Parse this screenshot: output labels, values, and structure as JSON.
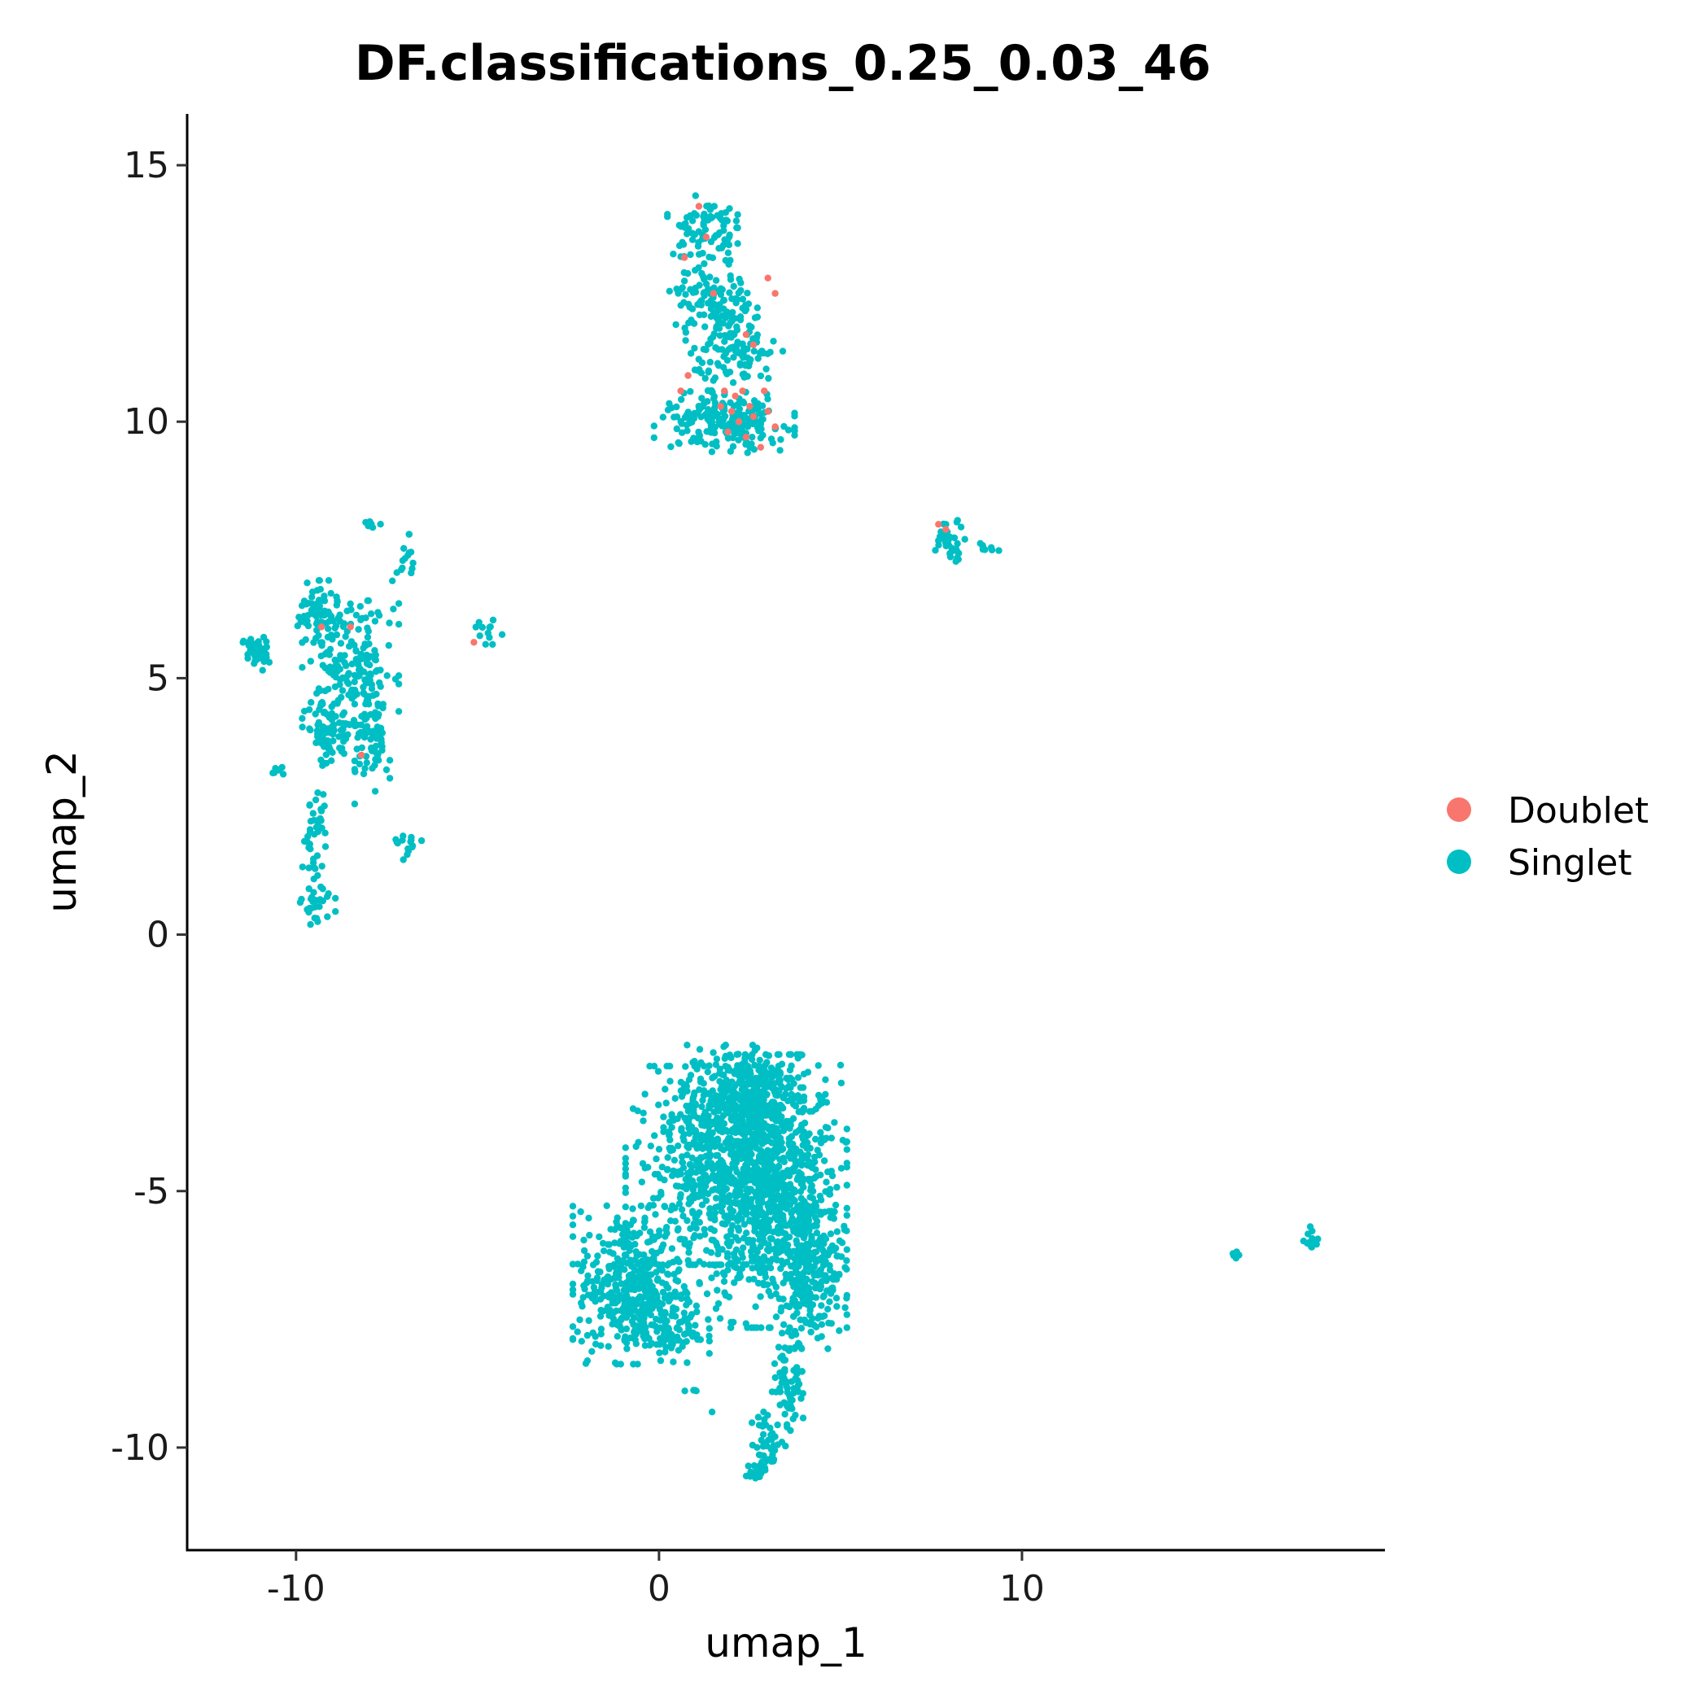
{
  "chart_data": {
    "type": "scatter",
    "title": "DF.classifications_0.25_0.03_46",
    "xlabel": "umap_1",
    "ylabel": "umap_2",
    "xlim": [
      -13,
      20
    ],
    "ylim": [
      -12,
      16
    ],
    "x_ticks": [
      -10,
      0,
      10
    ],
    "y_ticks": [
      -10,
      -5,
      0,
      5,
      10,
      15
    ],
    "x_tick_labels": [
      "-10",
      "0",
      "10"
    ],
    "y_tick_labels": [
      "-10",
      "-5",
      "0",
      "5",
      "10",
      "15"
    ],
    "grid": false,
    "legend_position": "right",
    "series": [
      {
        "name": "Doublet",
        "color": "#F8766D",
        "points": [
          [
            1.1,
            14.2
          ],
          [
            1.3,
            13.6
          ],
          [
            0.7,
            13.2
          ],
          [
            1.5,
            12.5
          ],
          [
            3.0,
            12.8
          ],
          [
            3.2,
            12.5
          ],
          [
            2.4,
            11.7
          ],
          [
            2.6,
            11.5
          ],
          [
            1.8,
            10.6
          ],
          [
            2.1,
            10.5
          ],
          [
            2.3,
            10.6
          ],
          [
            2.5,
            10.3
          ],
          [
            2.0,
            10.2
          ],
          [
            1.7,
            10.3
          ],
          [
            2.2,
            10.0
          ],
          [
            2.6,
            10.1
          ],
          [
            3.0,
            10.2
          ],
          [
            3.2,
            9.9
          ],
          [
            2.8,
            9.5
          ],
          [
            1.9,
            9.8
          ],
          [
            2.4,
            9.7
          ],
          [
            0.6,
            10.6
          ],
          [
            0.8,
            10.9
          ],
          [
            -9.3,
            6.0
          ],
          [
            -8.5,
            6.0
          ],
          [
            -8.2,
            3.5
          ],
          [
            -5.1,
            5.7
          ],
          [
            7.7,
            8.0
          ],
          [
            7.9,
            7.9
          ],
          [
            2.9,
            10.6
          ]
        ]
      },
      {
        "name": "Singlet",
        "color": "#00BFC4",
        "points": []
      }
    ],
    "clusters": [
      {
        "series": "Singlet",
        "cx": 3.0,
        "cy": -5.0,
        "rx": 1.8,
        "ry": 2.2,
        "n": 900
      },
      {
        "series": "Singlet",
        "cx": 1.5,
        "cy": -4.5,
        "rx": 2.0,
        "ry": 1.6,
        "n": 500
      },
      {
        "series": "Singlet",
        "cx": -0.8,
        "cy": -6.8,
        "rx": 1.3,
        "ry": 1.3,
        "n": 420
      },
      {
        "series": "Singlet",
        "cx": 4.2,
        "cy": -6.5,
        "rx": 0.8,
        "ry": 1.3,
        "n": 220
      },
      {
        "series": "Singlet",
        "cx": 2.3,
        "cy": -3.0,
        "rx": 1.4,
        "ry": 0.7,
        "n": 260
      },
      {
        "series": "Singlet",
        "cx": 0.3,
        "cy": -7.7,
        "rx": 0.9,
        "ry": 0.5,
        "n": 90
      },
      {
        "series": "Singlet",
        "cx": 3.6,
        "cy": -8.7,
        "rx": 0.4,
        "ry": 0.8,
        "n": 70
      },
      {
        "series": "Singlet",
        "cx": 3.0,
        "cy": -9.9,
        "rx": 0.4,
        "ry": 0.5,
        "n": 45
      },
      {
        "series": "Singlet",
        "cx": 2.7,
        "cy": -10.5,
        "rx": 0.3,
        "ry": 0.2,
        "n": 20
      },
      {
        "series": "Singlet",
        "cx": 1.2,
        "cy": 13.8,
        "rx": 0.8,
        "ry": 0.5,
        "n": 80
      },
      {
        "series": "Singlet",
        "cx": 1.5,
        "cy": 12.3,
        "rx": 1.0,
        "ry": 0.8,
        "n": 130
      },
      {
        "series": "Singlet",
        "cx": 2.2,
        "cy": 11.3,
        "rx": 1.0,
        "ry": 0.6,
        "n": 100
      },
      {
        "series": "Singlet",
        "cx": 1.8,
        "cy": 10.0,
        "rx": 1.6,
        "ry": 0.5,
        "n": 210
      },
      {
        "series": "Singlet",
        "cx": -8.5,
        "cy": 5.3,
        "rx": 1.1,
        "ry": 1.0,
        "n": 160
      },
      {
        "series": "Singlet",
        "cx": -9.1,
        "cy": 3.9,
        "rx": 0.6,
        "ry": 0.6,
        "n": 80
      },
      {
        "series": "Singlet",
        "cx": -7.9,
        "cy": 4.0,
        "rx": 0.4,
        "ry": 1.2,
        "n": 90
      },
      {
        "series": "Singlet",
        "cx": -9.4,
        "cy": 6.3,
        "rx": 0.5,
        "ry": 0.5,
        "n": 70
      },
      {
        "series": "Singlet",
        "cx": -11.1,
        "cy": 5.5,
        "rx": 0.3,
        "ry": 0.3,
        "n": 50
      },
      {
        "series": "Singlet",
        "cx": -9.5,
        "cy": 2.0,
        "rx": 0.3,
        "ry": 0.7,
        "n": 40
      },
      {
        "series": "Singlet",
        "cx": -9.4,
        "cy": 0.6,
        "rx": 0.4,
        "ry": 0.4,
        "n": 30
      },
      {
        "series": "Singlet",
        "cx": -6.9,
        "cy": 1.7,
        "rx": 0.3,
        "ry": 0.2,
        "n": 15
      },
      {
        "series": "Singlet",
        "cx": -7.0,
        "cy": 7.2,
        "rx": 0.3,
        "ry": 0.5,
        "n": 15
      },
      {
        "series": "Singlet",
        "cx": -7.9,
        "cy": 8.0,
        "rx": 0.2,
        "ry": 0.1,
        "n": 6
      },
      {
        "series": "Singlet",
        "cx": -4.7,
        "cy": 5.9,
        "rx": 0.4,
        "ry": 0.2,
        "n": 12
      },
      {
        "series": "Singlet",
        "cx": -10.5,
        "cy": 3.2,
        "rx": 0.2,
        "ry": 0.1,
        "n": 6
      },
      {
        "series": "Singlet",
        "cx": 8.0,
        "cy": 7.7,
        "rx": 0.4,
        "ry": 0.35,
        "n": 40
      },
      {
        "series": "Singlet",
        "cx": 9.0,
        "cy": 7.55,
        "rx": 0.3,
        "ry": 0.08,
        "n": 8
      },
      {
        "series": "Singlet",
        "cx": 18.0,
        "cy": -5.9,
        "rx": 0.2,
        "ry": 0.2,
        "n": 12
      },
      {
        "series": "Singlet",
        "cx": 15.9,
        "cy": -6.25,
        "rx": 0.1,
        "ry": 0.1,
        "n": 6
      },
      {
        "series": "Singlet",
        "cx": 0.9,
        "cy": -8.9,
        "rx": 0.3,
        "ry": 0.05,
        "n": 4
      },
      {
        "series": "Singlet",
        "cx": 1.5,
        "cy": -9.3,
        "rx": 0.05,
        "ry": 0.05,
        "n": 1
      }
    ]
  }
}
